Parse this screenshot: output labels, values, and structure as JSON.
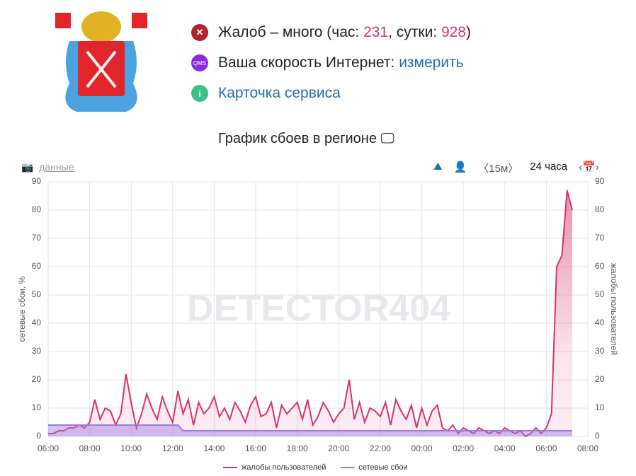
{
  "header": {
    "complaints": {
      "label": "Жалоб – много (час: ",
      "hour": "231",
      "mid": ", сутки: ",
      "day": "928",
      "end": ")"
    },
    "speed": {
      "icon": "QMS",
      "label": "Ваша скорость Интернет: ",
      "link": "измерить"
    },
    "card": "Карточка сервиса",
    "chart_heading": "График сбоев в регионе"
  },
  "toolbar": {
    "data": "данные",
    "interval": "〈15м〉",
    "period": "24 часа"
  },
  "chart_data": {
    "type": "line",
    "watermark": "DETECTOR404",
    "y_label": "сетевые сбои, %",
    "y2_label": "жалобы пользователей",
    "categories": [
      "06:00",
      null,
      null,
      null,
      null,
      null,
      null,
      null,
      "08:00",
      null,
      null,
      null,
      null,
      null,
      null,
      null,
      "10:00",
      null,
      null,
      null,
      null,
      null,
      null,
      null,
      "12:00",
      null,
      null,
      null,
      null,
      null,
      null,
      null,
      "14:00",
      null,
      null,
      null,
      null,
      null,
      null,
      null,
      "16:00",
      null,
      null,
      null,
      null,
      null,
      null,
      null,
      "18:00",
      null,
      null,
      null,
      null,
      null,
      null,
      null,
      "20:00",
      null,
      null,
      null,
      null,
      null,
      null,
      null,
      "22:00",
      null,
      null,
      null,
      null,
      null,
      null,
      null,
      "00:00",
      null,
      null,
      null,
      null,
      null,
      null,
      null,
      "02:00",
      null,
      null,
      null,
      null,
      null,
      null,
      null,
      "04:00",
      null,
      null,
      null,
      null,
      null,
      null,
      null,
      "06:00",
      null,
      null,
      null,
      null,
      null,
      null,
      null,
      "08:00"
    ],
    "series": [
      {
        "name": "жалобы пользователей",
        "color": "#d6336c",
        "axis": "y2",
        "values": [
          1,
          1,
          2,
          2,
          3,
          3,
          4,
          3,
          5,
          13,
          6,
          10,
          9,
          4,
          8,
          22,
          12,
          3,
          8,
          15,
          10,
          6,
          14,
          9,
          5,
          16,
          8,
          13,
          4,
          12,
          8,
          10,
          14,
          7,
          10,
          6,
          12,
          9,
          5,
          11,
          14,
          7,
          8,
          12,
          3,
          11,
          8,
          10,
          12,
          6,
          13,
          4,
          7,
          12,
          9,
          5,
          8,
          10,
          20,
          6,
          12,
          5,
          10,
          9,
          7,
          12,
          4,
          13,
          9,
          6,
          11,
          3,
          10,
          4,
          9,
          11,
          3,
          2,
          4,
          1,
          3,
          2,
          1,
          3,
          2,
          1,
          2,
          1,
          3,
          2,
          1,
          2,
          0,
          1,
          3,
          1,
          3,
          8,
          60,
          64,
          87,
          80,
          null,
          null,
          null
        ]
      },
      {
        "name": "сетевые сбои",
        "color": "#9b7be0",
        "values": [
          4,
          4,
          4,
          4,
          4,
          4,
          4,
          4,
          4,
          4,
          4,
          4,
          4,
          4,
          4,
          4,
          4,
          4,
          4,
          4,
          4,
          4,
          4,
          4,
          4,
          4,
          2,
          2,
          2,
          2,
          2,
          2,
          2,
          2,
          2,
          2,
          2,
          2,
          2,
          2,
          2,
          2,
          2,
          2,
          2,
          2,
          2,
          2,
          2,
          2,
          2,
          2,
          2,
          2,
          2,
          2,
          2,
          2,
          2,
          2,
          2,
          2,
          2,
          2,
          2,
          2,
          2,
          2,
          2,
          2,
          2,
          2,
          2,
          2,
          2,
          2,
          2,
          2,
          2,
          2,
          2,
          2,
          2,
          2,
          2,
          2,
          2,
          2,
          2,
          2,
          2,
          2,
          2,
          2,
          2,
          2,
          2,
          2,
          2,
          2,
          2,
          2,
          null,
          null,
          null
        ]
      }
    ],
    "ylim": [
      0,
      90
    ],
    "yticks": [
      0,
      10,
      20,
      30,
      40,
      50,
      60,
      70,
      80,
      90
    ],
    "y2lim": [
      0,
      90
    ],
    "y2ticks": [
      0,
      10,
      20,
      30,
      40,
      50,
      60,
      70,
      80,
      90
    ],
    "grid": true,
    "legend": "bottom"
  }
}
